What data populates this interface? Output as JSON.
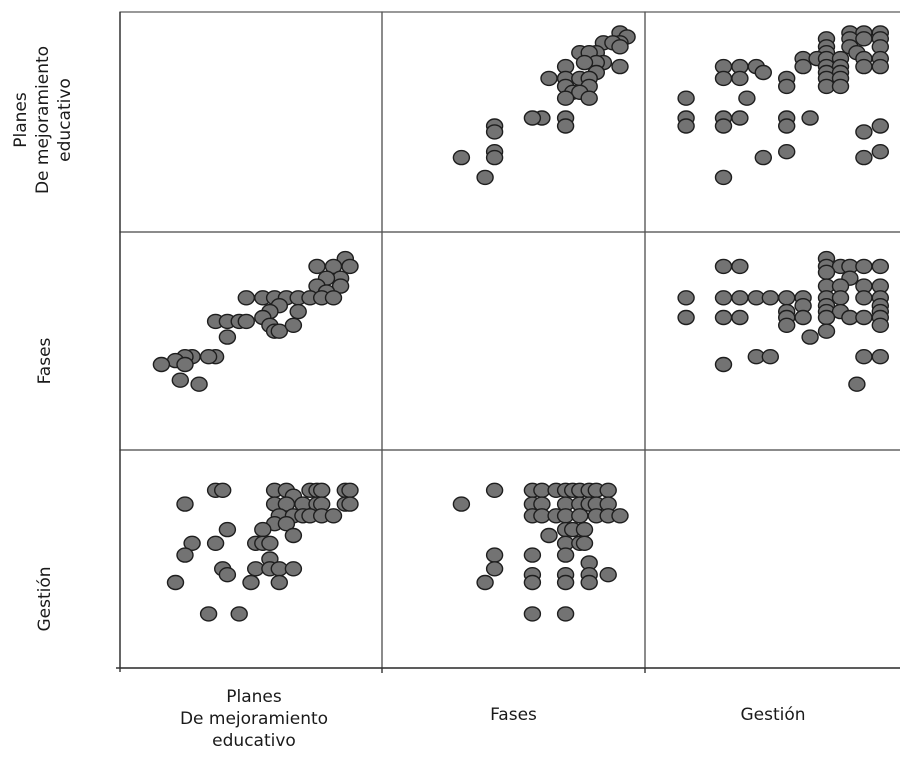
{
  "chart_data": {
    "type": "scatter",
    "variables": [
      {
        "key": "planes",
        "label_lines": [
          "Planes",
          "De  mejoramiento",
          "educativo"
        ]
      },
      {
        "key": "fases",
        "label_lines": [
          "Fases"
        ]
      },
      {
        "key": "gestion",
        "label_lines": [
          "Gestión"
        ]
      }
    ],
    "point_color": "#737373",
    "point_stroke": "#1e1e1e",
    "grid_color": "#555555",
    "panels": [
      {
        "row": 0,
        "col": 1,
        "x_var": "fases",
        "y_var": "planes",
        "points": [
          [
            0.95,
            0.95
          ],
          [
            0.98,
            0.93
          ],
          [
            0.95,
            0.9
          ],
          [
            0.88,
            0.9
          ],
          [
            0.92,
            0.9
          ],
          [
            0.95,
            0.88
          ],
          [
            0.85,
            0.85
          ],
          [
            0.78,
            0.85
          ],
          [
            0.82,
            0.85
          ],
          [
            0.95,
            0.78
          ],
          [
            0.88,
            0.8
          ],
          [
            0.85,
            0.8
          ],
          [
            0.8,
            0.8
          ],
          [
            0.72,
            0.78
          ],
          [
            0.85,
            0.75
          ],
          [
            0.65,
            0.72
          ],
          [
            0.72,
            0.72
          ],
          [
            0.78,
            0.72
          ],
          [
            0.82,
            0.72
          ],
          [
            0.72,
            0.68
          ],
          [
            0.82,
            0.68
          ],
          [
            0.75,
            0.65
          ],
          [
            0.78,
            0.65
          ],
          [
            0.82,
            0.62
          ],
          [
            0.72,
            0.62
          ],
          [
            0.62,
            0.52
          ],
          [
            0.72,
            0.52
          ],
          [
            0.72,
            0.48
          ],
          [
            0.58,
            0.52
          ],
          [
            0.42,
            0.48
          ],
          [
            0.42,
            0.45
          ],
          [
            0.42,
            0.35
          ],
          [
            0.42,
            0.32
          ],
          [
            0.28,
            0.32
          ],
          [
            0.38,
            0.22
          ]
        ]
      },
      {
        "row": 0,
        "col": 2,
        "x_var": "gestion",
        "y_var": "planes",
        "points": [
          [
            0.82,
            0.95
          ],
          [
            0.88,
            0.95
          ],
          [
            0.95,
            0.95
          ],
          [
            0.72,
            0.92
          ],
          [
            0.82,
            0.92
          ],
          [
            0.88,
            0.92
          ],
          [
            0.95,
            0.92
          ],
          [
            0.72,
            0.88
          ],
          [
            0.82,
            0.88
          ],
          [
            0.95,
            0.88
          ],
          [
            0.72,
            0.85
          ],
          [
            0.85,
            0.85
          ],
          [
            0.62,
            0.82
          ],
          [
            0.68,
            0.82
          ],
          [
            0.72,
            0.82
          ],
          [
            0.78,
            0.82
          ],
          [
            0.88,
            0.82
          ],
          [
            0.95,
            0.82
          ],
          [
            0.28,
            0.78
          ],
          [
            0.35,
            0.78
          ],
          [
            0.42,
            0.78
          ],
          [
            0.62,
            0.78
          ],
          [
            0.72,
            0.78
          ],
          [
            0.78,
            0.78
          ],
          [
            0.88,
            0.78
          ],
          [
            0.95,
            0.78
          ],
          [
            0.45,
            0.75
          ],
          [
            0.72,
            0.75
          ],
          [
            0.78,
            0.75
          ],
          [
            0.28,
            0.72
          ],
          [
            0.35,
            0.72
          ],
          [
            0.55,
            0.72
          ],
          [
            0.72,
            0.72
          ],
          [
            0.78,
            0.72
          ],
          [
            0.55,
            0.68
          ],
          [
            0.72,
            0.68
          ],
          [
            0.78,
            0.68
          ],
          [
            0.12,
            0.62
          ],
          [
            0.38,
            0.62
          ],
          [
            0.12,
            0.52
          ],
          [
            0.28,
            0.52
          ],
          [
            0.35,
            0.52
          ],
          [
            0.55,
            0.52
          ],
          [
            0.65,
            0.52
          ],
          [
            0.95,
            0.48
          ],
          [
            0.55,
            0.48
          ],
          [
            0.28,
            0.48
          ],
          [
            0.12,
            0.48
          ],
          [
            0.88,
            0.45
          ],
          [
            0.55,
            0.35
          ],
          [
            0.95,
            0.35
          ],
          [
            0.45,
            0.32
          ],
          [
            0.88,
            0.32
          ],
          [
            0.28,
            0.22
          ]
        ]
      },
      {
        "row": 1,
        "col": 0,
        "x_var": "planes",
        "y_var": "fases",
        "points": [
          [
            0.9,
            0.92
          ],
          [
            0.92,
            0.88
          ],
          [
            0.78,
            0.88
          ],
          [
            0.85,
            0.88
          ],
          [
            0.88,
            0.82
          ],
          [
            0.82,
            0.82
          ],
          [
            0.78,
            0.78
          ],
          [
            0.88,
            0.78
          ],
          [
            0.82,
            0.75
          ],
          [
            0.48,
            0.72
          ],
          [
            0.55,
            0.72
          ],
          [
            0.6,
            0.72
          ],
          [
            0.65,
            0.72
          ],
          [
            0.7,
            0.72
          ],
          [
            0.75,
            0.72
          ],
          [
            0.8,
            0.72
          ],
          [
            0.85,
            0.72
          ],
          [
            0.62,
            0.68
          ],
          [
            0.7,
            0.65
          ],
          [
            0.58,
            0.65
          ],
          [
            0.55,
            0.62
          ],
          [
            0.35,
            0.6
          ],
          [
            0.4,
            0.6
          ],
          [
            0.45,
            0.6
          ],
          [
            0.48,
            0.6
          ],
          [
            0.58,
            0.58
          ],
          [
            0.6,
            0.55
          ],
          [
            0.62,
            0.55
          ],
          [
            0.68,
            0.58
          ],
          [
            0.4,
            0.52
          ],
          [
            0.35,
            0.42
          ],
          [
            0.32,
            0.42
          ],
          [
            0.25,
            0.42
          ],
          [
            0.22,
            0.42
          ],
          [
            0.18,
            0.4
          ],
          [
            0.12,
            0.38
          ],
          [
            0.2,
            0.3
          ],
          [
            0.28,
            0.28
          ],
          [
            0.22,
            0.38
          ]
        ]
      },
      {
        "row": 1,
        "col": 2,
        "x_var": "gestion",
        "y_var": "fases",
        "points": [
          [
            0.72,
            0.92
          ],
          [
            0.72,
            0.88
          ],
          [
            0.28,
            0.88
          ],
          [
            0.35,
            0.88
          ],
          [
            0.78,
            0.88
          ],
          [
            0.82,
            0.88
          ],
          [
            0.88,
            0.88
          ],
          [
            0.95,
            0.88
          ],
          [
            0.72,
            0.85
          ],
          [
            0.82,
            0.82
          ],
          [
            0.72,
            0.78
          ],
          [
            0.78,
            0.78
          ],
          [
            0.88,
            0.78
          ],
          [
            0.95,
            0.78
          ],
          [
            0.12,
            0.72
          ],
          [
            0.28,
            0.72
          ],
          [
            0.35,
            0.72
          ],
          [
            0.42,
            0.72
          ],
          [
            0.48,
            0.72
          ],
          [
            0.55,
            0.72
          ],
          [
            0.62,
            0.72
          ],
          [
            0.72,
            0.72
          ],
          [
            0.78,
            0.72
          ],
          [
            0.88,
            0.72
          ],
          [
            0.95,
            0.72
          ],
          [
            0.62,
            0.68
          ],
          [
            0.72,
            0.68
          ],
          [
            0.95,
            0.68
          ],
          [
            0.55,
            0.65
          ],
          [
            0.72,
            0.65
          ],
          [
            0.78,
            0.65
          ],
          [
            0.95,
            0.65
          ],
          [
            0.12,
            0.62
          ],
          [
            0.28,
            0.62
          ],
          [
            0.35,
            0.62
          ],
          [
            0.55,
            0.62
          ],
          [
            0.62,
            0.62
          ],
          [
            0.72,
            0.62
          ],
          [
            0.82,
            0.62
          ],
          [
            0.88,
            0.62
          ],
          [
            0.95,
            0.62
          ],
          [
            0.55,
            0.58
          ],
          [
            0.95,
            0.58
          ],
          [
            0.72,
            0.55
          ],
          [
            0.65,
            0.52
          ],
          [
            0.42,
            0.42
          ],
          [
            0.48,
            0.42
          ],
          [
            0.95,
            0.42
          ],
          [
            0.88,
            0.42
          ],
          [
            0.28,
            0.38
          ],
          [
            0.85,
            0.28
          ]
        ]
      },
      {
        "row": 2,
        "col": 0,
        "x_var": "planes",
        "y_var": "gestion",
        "points": [
          [
            0.35,
            0.85
          ],
          [
            0.38,
            0.85
          ],
          [
            0.6,
            0.85
          ],
          [
            0.65,
            0.85
          ],
          [
            0.75,
            0.85
          ],
          [
            0.78,
            0.85
          ],
          [
            0.8,
            0.85
          ],
          [
            0.9,
            0.85
          ],
          [
            0.92,
            0.85
          ],
          [
            0.68,
            0.82
          ],
          [
            0.22,
            0.78
          ],
          [
            0.6,
            0.78
          ],
          [
            0.65,
            0.78
          ],
          [
            0.72,
            0.78
          ],
          [
            0.78,
            0.78
          ],
          [
            0.8,
            0.78
          ],
          [
            0.9,
            0.78
          ],
          [
            0.92,
            0.78
          ],
          [
            0.62,
            0.72
          ],
          [
            0.68,
            0.72
          ],
          [
            0.72,
            0.72
          ],
          [
            0.75,
            0.72
          ],
          [
            0.8,
            0.72
          ],
          [
            0.85,
            0.72
          ],
          [
            0.6,
            0.68
          ],
          [
            0.65,
            0.68
          ],
          [
            0.4,
            0.65
          ],
          [
            0.55,
            0.65
          ],
          [
            0.68,
            0.62
          ],
          [
            0.52,
            0.58
          ],
          [
            0.55,
            0.58
          ],
          [
            0.58,
            0.58
          ],
          [
            0.25,
            0.58
          ],
          [
            0.35,
            0.58
          ],
          [
            0.22,
            0.52
          ],
          [
            0.58,
            0.5
          ],
          [
            0.38,
            0.45
          ],
          [
            0.52,
            0.45
          ],
          [
            0.58,
            0.45
          ],
          [
            0.62,
            0.45
          ],
          [
            0.68,
            0.45
          ],
          [
            0.4,
            0.42
          ],
          [
            0.18,
            0.38
          ],
          [
            0.5,
            0.38
          ],
          [
            0.62,
            0.38
          ],
          [
            0.32,
            0.22
          ],
          [
            0.45,
            0.22
          ]
        ]
      },
      {
        "row": 2,
        "col": 1,
        "x_var": "fases",
        "y_var": "gestion",
        "points": [
          [
            0.42,
            0.85
          ],
          [
            0.58,
            0.85
          ],
          [
            0.62,
            0.85
          ],
          [
            0.68,
            0.85
          ],
          [
            0.72,
            0.85
          ],
          [
            0.75,
            0.85
          ],
          [
            0.78,
            0.85
          ],
          [
            0.82,
            0.85
          ],
          [
            0.85,
            0.85
          ],
          [
            0.9,
            0.85
          ],
          [
            0.28,
            0.78
          ],
          [
            0.58,
            0.78
          ],
          [
            0.62,
            0.78
          ],
          [
            0.72,
            0.78
          ],
          [
            0.78,
            0.78
          ],
          [
            0.82,
            0.78
          ],
          [
            0.85,
            0.78
          ],
          [
            0.9,
            0.78
          ],
          [
            0.58,
            0.72
          ],
          [
            0.62,
            0.72
          ],
          [
            0.68,
            0.72
          ],
          [
            0.72,
            0.72
          ],
          [
            0.78,
            0.72
          ],
          [
            0.85,
            0.72
          ],
          [
            0.9,
            0.72
          ],
          [
            0.95,
            0.72
          ],
          [
            0.72,
            0.65
          ],
          [
            0.75,
            0.65
          ],
          [
            0.8,
            0.65
          ],
          [
            0.65,
            0.62
          ],
          [
            0.72,
            0.58
          ],
          [
            0.78,
            0.58
          ],
          [
            0.8,
            0.58
          ],
          [
            0.58,
            0.52
          ],
          [
            0.72,
            0.52
          ],
          [
            0.82,
            0.48
          ],
          [
            0.42,
            0.52
          ],
          [
            0.42,
            0.45
          ],
          [
            0.58,
            0.42
          ],
          [
            0.72,
            0.42
          ],
          [
            0.82,
            0.42
          ],
          [
            0.9,
            0.42
          ],
          [
            0.58,
            0.38
          ],
          [
            0.72,
            0.38
          ],
          [
            0.82,
            0.38
          ],
          [
            0.38,
            0.38
          ],
          [
            0.58,
            0.22
          ],
          [
            0.72,
            0.22
          ]
        ]
      }
    ]
  }
}
